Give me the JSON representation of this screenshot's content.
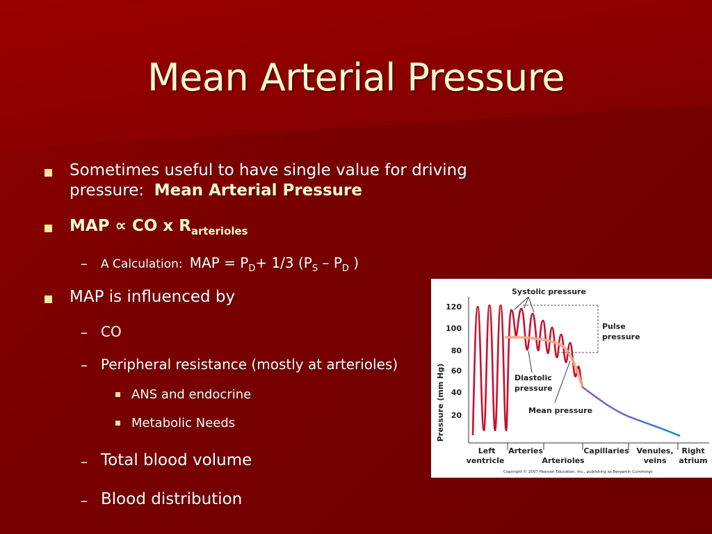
{
  "slide": {
    "title": "Mean Arterial Pressure",
    "bullets": {
      "b1_line1": "Sometimes useful to have single value for driving",
      "b1_line2": "pressure:",
      "b1_bold": "Mean Arterial Pressure",
      "b2_map": "MAP",
      "b2_symbol": "∝",
      "b2_co": "CO x R",
      "b2_sub": "arterioles",
      "calc_label": "A Calculation:",
      "calc_formula_a": "MAP = P",
      "calc_sub_d1": "D",
      "calc_formula_b": "+ 1/3 (P",
      "calc_sub_s": "S",
      "calc_formula_c": "– P",
      "calc_sub_d2": "D",
      "calc_formula_d": ")",
      "b3": "MAP is influenced by",
      "co": "CO",
      "peripheral": "Peripheral resistance (mostly at arterioles)",
      "ans": "ANS and endocrine",
      "metabolic": "Metabolic Needs",
      "volume": "Total blood volume",
      "distribution": "Blood distribution"
    }
  },
  "figure": {
    "ylabel": "Pressure (mm Hg)",
    "yticks": [
      "120",
      "100",
      "80",
      "60",
      "40",
      "20"
    ],
    "regions": {
      "left_ventricle_1": "Left",
      "left_ventricle_2": "ventricle",
      "arteries": "Arteries",
      "arterioles": "Arterioles",
      "capillaries": "Capillaries",
      "venules_1": "Venules,",
      "venules_2": "veins",
      "atrium_1": "Right",
      "atrium_2": "atrium"
    },
    "annotations": {
      "systolic": "Systolic pressure",
      "pulse_1": "Pulse",
      "pulse_2": "pressure",
      "diastolic_1": "Diastolic",
      "diastolic_2": "pressure",
      "mean": "Mean pressure"
    },
    "copyright": "Copyright © 2007 Pearson Education, Inc., publishing as Benjamin Cummings"
  },
  "colors": {
    "background": "#7a0000",
    "title": "#fffbd0",
    "bullet": "#ffe79a",
    "curve": "#c8102e",
    "mean_curve": "#f2a98a",
    "capillary_curve": "#8a5bc6",
    "vein_curve": "#1a8fc0"
  }
}
